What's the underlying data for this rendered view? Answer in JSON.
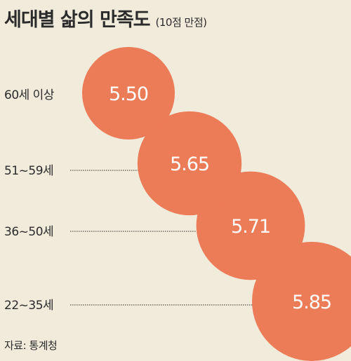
{
  "title": "세대별 삶의 만족도",
  "subtitle": "(10점 만점)",
  "source": "자료: 통계청",
  "chart_data": {
    "type": "bubble",
    "categories": [
      "60세 이상",
      "51~59세",
      "36~50세",
      "22~35세"
    ],
    "values": [
      5.5,
      5.65,
      5.71,
      5.85
    ],
    "value_labels": [
      "5.50",
      "5.65",
      "5.71",
      "5.85"
    ],
    "bubble_color": "#ec7b58",
    "label_color": "#ffffff",
    "leader_color": "#2b2b2b"
  }
}
